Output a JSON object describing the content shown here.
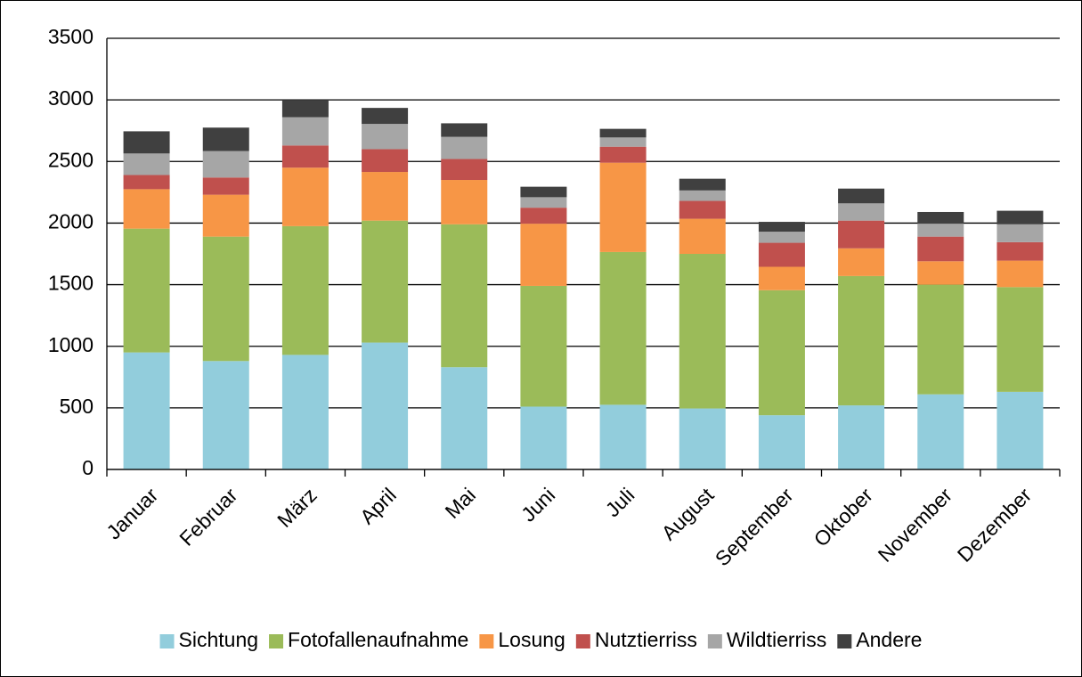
{
  "chart_data": {
    "type": "stacked_bar",
    "categories": [
      "Januar",
      "Februar",
      "März",
      "April",
      "Mai",
      "Juni",
      "Juli",
      "August",
      "September",
      "Oktober",
      "November",
      "Dezember"
    ],
    "series": [
      {
        "name": "Sichtung",
        "color": "#92cddc",
        "values": [
          950,
          880,
          930,
          1030,
          830,
          510,
          525,
          495,
          440,
          520,
          610,
          630
        ]
      },
      {
        "name": "Fotofallenaufnahme",
        "color": "#9bbb59",
        "values": [
          1005,
          1010,
          1045,
          990,
          1160,
          980,
          1240,
          1255,
          1015,
          1050,
          890,
          850
        ]
      },
      {
        "name": "Losung",
        "color": "#f79646",
        "values": [
          320,
          340,
          475,
          395,
          360,
          505,
          725,
          285,
          190,
          225,
          190,
          215
        ]
      },
      {
        "name": "Nutztierriss",
        "color": "#c0504d",
        "values": [
          115,
          140,
          180,
          185,
          170,
          130,
          130,
          145,
          195,
          225,
          200,
          150
        ]
      },
      {
        "name": "Wildtierriss",
        "color": "#a6a6a6",
        "values": [
          175,
          215,
          230,
          205,
          180,
          85,
          75,
          85,
          90,
          140,
          105,
          145
        ]
      },
      {
        "name": "Andere",
        "color": "#404040",
        "values": [
          180,
          190,
          140,
          130,
          110,
          85,
          70,
          95,
          80,
          120,
          95,
          110
        ]
      }
    ],
    "ylim": [
      0,
      3500
    ],
    "yticks": [
      0,
      500,
      1000,
      1500,
      2000,
      2500,
      3000,
      3500
    ],
    "grid": true,
    "legend": "bottom"
  }
}
